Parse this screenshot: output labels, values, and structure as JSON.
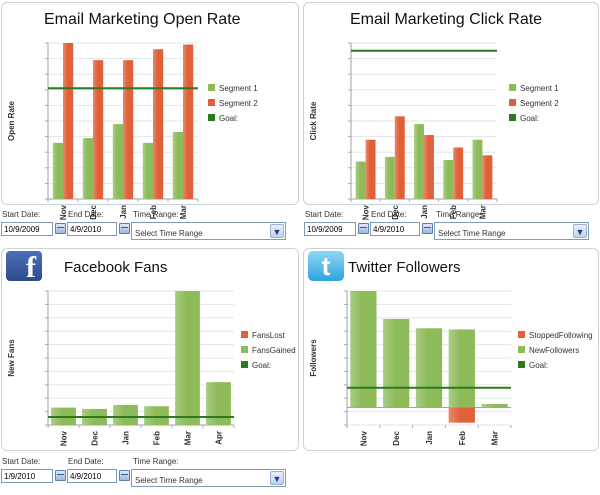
{
  "chart_data": [
    {
      "type": "bar",
      "title": "Email Marketing Open Rate",
      "xlabel": "",
      "ylabel": "Open Rate",
      "categories": [
        "Nov",
        "Dec",
        "Jan",
        "Feb",
        "Mar"
      ],
      "ylim": [
        0,
        100
      ],
      "grid": true,
      "series": [
        {
          "name": "Segment 1",
          "color": "#8dbb5a",
          "values": [
            36,
            39,
            48,
            36,
            43
          ]
        },
        {
          "name": "Segment 2",
          "color": "#e0603a",
          "values": [
            100,
            89,
            89,
            96,
            99
          ]
        }
      ],
      "goal": {
        "name": "Goal:",
        "color": "#2b7a1e",
        "value": 71
      },
      "legend_position": "right"
    },
    {
      "type": "bar",
      "title": "Email Marketing Click Rate",
      "xlabel": "",
      "ylabel": "Click Rate",
      "categories": [
        "Nov",
        "Dec",
        "Jan",
        "Feb",
        "Mar"
      ],
      "ylim": [
        0,
        100
      ],
      "grid": true,
      "series": [
        {
          "name": "Segment 1",
          "color": "#8dbb5a",
          "values": [
            24,
            27,
            48,
            25,
            38
          ]
        },
        {
          "name": "Segment 2",
          "color": "#e0603a",
          "values": [
            38,
            53,
            41,
            33,
            28
          ]
        }
      ],
      "goal": {
        "name": "Goal:",
        "color": "#2b7a1e",
        "value": 95
      },
      "legend_position": "right"
    },
    {
      "type": "bar",
      "title": "Facebook Fans",
      "xlabel": "",
      "ylabel": "New Fans",
      "categories": [
        "Nov",
        "Dec",
        "Jan",
        "Feb",
        "Mar",
        "Apr"
      ],
      "ylim": [
        0,
        100
      ],
      "grid": true,
      "series": [
        {
          "name": "FansLost",
          "color": "#e0603a",
          "values": [
            0,
            0,
            0,
            0,
            0,
            0
          ]
        },
        {
          "name": "FansGained",
          "color": "#8dbb5a",
          "values": [
            13,
            12,
            15,
            14,
            100,
            32
          ]
        }
      ],
      "goal": {
        "name": "Goal:",
        "color": "#2b7a1e",
        "value": 6
      },
      "legend_position": "right"
    },
    {
      "type": "bar",
      "title": "Twitter Followers",
      "xlabel": "",
      "ylabel": "Followers",
      "categories": [
        "Nov",
        "Dec",
        "Jan",
        "Feb",
        "Mar"
      ],
      "ylim": [
        -15,
        100
      ],
      "grid": true,
      "series": [
        {
          "name": "StoppedFollowing",
          "color": "#e0603a",
          "values": [
            0,
            0,
            0,
            -13,
            0
          ]
        },
        {
          "name": "NewFollowers",
          "color": "#8dbb5a",
          "values": [
            100,
            76,
            68,
            67,
            3
          ]
        }
      ],
      "goal": {
        "name": "Goal:",
        "color": "#2b7a1e",
        "value": 17
      },
      "legend_position": "right"
    }
  ],
  "controls": [
    {
      "start_label": "Start Date:",
      "start_value": "10/9/2009",
      "end_label": "End Date:",
      "end_value": "4/9/2010",
      "range_label": "Time Range:",
      "range_value": "Select Time Range"
    },
    {
      "start_label": "Start Date:",
      "start_value": "10/9/2009",
      "end_label": "End Date:",
      "end_value": "4/9/2010",
      "range_label": "Time Range:",
      "range_value": "Select Time Range"
    },
    {
      "start_label": "Start Date:",
      "start_value": "1/9/2010",
      "end_label": "End Date:",
      "end_value": "4/9/2010",
      "range_label": "Time Range:",
      "range_value": "Select Time Range"
    }
  ],
  "icons": {
    "facebook": {
      "name": "facebook-icon",
      "glyph": "f"
    },
    "twitter": {
      "name": "twitter-icon",
      "glyph": "t"
    }
  }
}
